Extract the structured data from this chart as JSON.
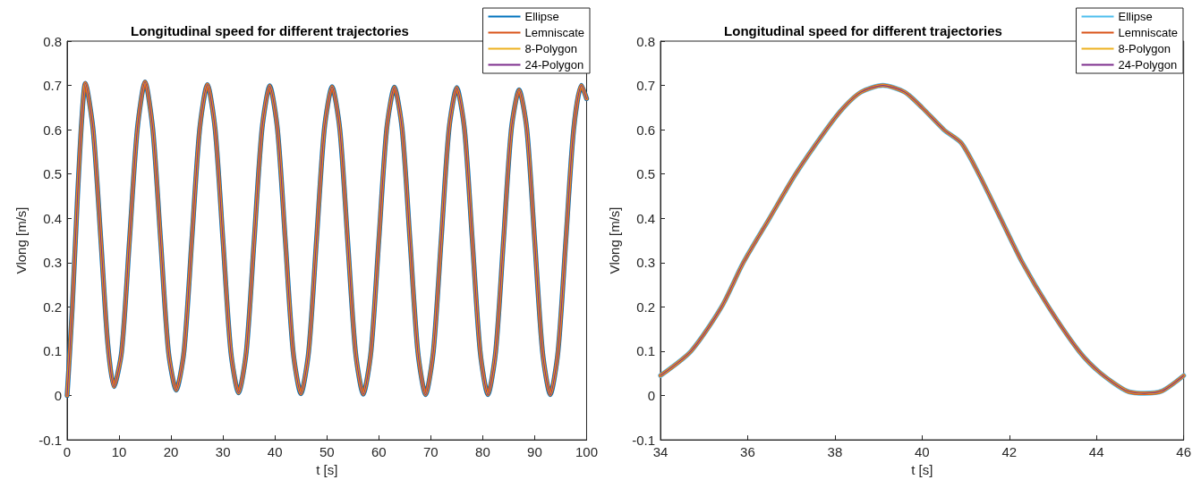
{
  "chart_data": [
    {
      "type": "line",
      "title": "Longitudinal speed for different trajectories",
      "xlabel": "t [s]",
      "ylabel": "Vlong [m/s]",
      "xlim": [
        0,
        100
      ],
      "xticks": [
        0,
        10,
        20,
        30,
        40,
        50,
        60,
        70,
        80,
        90,
        100
      ],
      "ylim": [
        -0.1,
        0.8
      ],
      "yticks": [
        -0.1,
        0,
        0.1,
        0.2,
        0.3,
        0.4,
        0.5,
        0.6,
        0.7,
        0.8
      ],
      "grid": false,
      "legend": "top right",
      "marker": "none",
      "line_style": "solid",
      "x": [
        0,
        1,
        2,
        2.8,
        3.5,
        5,
        6.5,
        7.8,
        9,
        10.5,
        12,
        13.5,
        15,
        16.5,
        18,
        19.5,
        21,
        22.5,
        24,
        25.5,
        27,
        28.5,
        30,
        31.5,
        33,
        34.5,
        36,
        37.5,
        39,
        40.5,
        42,
        43.5,
        45,
        46.5,
        48,
        49.5,
        51,
        52.5,
        54,
        55.5,
        57,
        58.5,
        60,
        61.5,
        63,
        64.5,
        66,
        67.5,
        69,
        70.5,
        72,
        73.5,
        75,
        76.5,
        78,
        79.5,
        81,
        82.5,
        84,
        85.5,
        87,
        88.5,
        90,
        91.5,
        93,
        94.5,
        96,
        97.5,
        99,
        100
      ],
      "series": [
        {
          "name": "Ellipse",
          "color": "#0072bd",
          "values": [
            0,
            0.2,
            0.45,
            0.62,
            0.705,
            0.6,
            0.35,
            0.12,
            0.02,
            0.1,
            0.35,
            0.6,
            0.708,
            0.6,
            0.35,
            0.1,
            0.012,
            0.1,
            0.35,
            0.6,
            0.702,
            0.6,
            0.35,
            0.1,
            0.006,
            0.1,
            0.35,
            0.6,
            0.699,
            0.6,
            0.35,
            0.1,
            0.004,
            0.1,
            0.35,
            0.6,
            0.697,
            0.6,
            0.35,
            0.1,
            0.003,
            0.1,
            0.35,
            0.6,
            0.696,
            0.6,
            0.35,
            0.1,
            0.002,
            0.1,
            0.35,
            0.6,
            0.695,
            0.6,
            0.35,
            0.1,
            0.002,
            0.1,
            0.35,
            0.6,
            0.69,
            0.6,
            0.35,
            0.1,
            0.002,
            0.1,
            0.35,
            0.6,
            0.7,
            0.67
          ]
        },
        {
          "name": "Lemniscate",
          "color": "#d95319",
          "values": [
            0,
            0.2,
            0.45,
            0.62,
            0.705,
            0.6,
            0.35,
            0.12,
            0.02,
            0.1,
            0.35,
            0.6,
            0.708,
            0.6,
            0.35,
            0.1,
            0.012,
            0.1,
            0.35,
            0.6,
            0.702,
            0.6,
            0.35,
            0.1,
            0.006,
            0.1,
            0.35,
            0.6,
            0.699,
            0.6,
            0.35,
            0.1,
            0.004,
            0.1,
            0.35,
            0.6,
            0.697,
            0.6,
            0.35,
            0.1,
            0.003,
            0.1,
            0.35,
            0.6,
            0.696,
            0.6,
            0.35,
            0.1,
            0.002,
            0.1,
            0.35,
            0.6,
            0.695,
            0.6,
            0.35,
            0.1,
            0.002,
            0.1,
            0.35,
            0.6,
            0.69,
            0.6,
            0.35,
            0.1,
            0.002,
            0.1,
            0.35,
            0.6,
            0.7,
            0.67
          ]
        },
        {
          "name": "8-Polygon",
          "color": "#edb120",
          "values": [
            0,
            0.2,
            0.45,
            0.62,
            0.705,
            0.6,
            0.35,
            0.12,
            0.02,
            0.1,
            0.35,
            0.6,
            0.708,
            0.6,
            0.35,
            0.1,
            0.012,
            0.1,
            0.35,
            0.6,
            0.702,
            0.6,
            0.35,
            0.1,
            0.006,
            0.1,
            0.35,
            0.6,
            0.699,
            0.6,
            0.35,
            0.1,
            0.004,
            0.1,
            0.35,
            0.6,
            0.697,
            0.6,
            0.35,
            0.1,
            0.003,
            0.1,
            0.35,
            0.6,
            0.696,
            0.6,
            0.35,
            0.1,
            0.002,
            0.1,
            0.35,
            0.6,
            0.695,
            0.6,
            0.35,
            0.1,
            0.002,
            0.1,
            0.35,
            0.6,
            0.69,
            0.6,
            0.35,
            0.1,
            0.002,
            0.1,
            0.35,
            0.6,
            0.7,
            0.67
          ]
        },
        {
          "name": "24-Polygon",
          "color": "#7e2f8e",
          "values": [
            0,
            0.2,
            0.45,
            0.62,
            0.705,
            0.6,
            0.35,
            0.12,
            0.02,
            0.1,
            0.35,
            0.6,
            0.708,
            0.6,
            0.35,
            0.1,
            0.012,
            0.1,
            0.35,
            0.6,
            0.702,
            0.6,
            0.35,
            0.1,
            0.006,
            0.1,
            0.35,
            0.6,
            0.699,
            0.6,
            0.35,
            0.1,
            0.004,
            0.1,
            0.35,
            0.6,
            0.697,
            0.6,
            0.35,
            0.1,
            0.003,
            0.1,
            0.35,
            0.6,
            0.696,
            0.6,
            0.35,
            0.1,
            0.002,
            0.1,
            0.35,
            0.6,
            0.695,
            0.6,
            0.35,
            0.1,
            0.002,
            0.1,
            0.35,
            0.6,
            0.69,
            0.6,
            0.35,
            0.1,
            0.002,
            0.1,
            0.35,
            0.6,
            0.7,
            0.67
          ]
        }
      ]
    },
    {
      "type": "line",
      "title": "Longitudinal speed for different trajectories",
      "xlabel": "t [s]",
      "ylabel": "Vlong [m/s]",
      "xlim": [
        34,
        46
      ],
      "xticks": [
        34,
        36,
        38,
        40,
        42,
        44,
        46
      ],
      "ylim": [
        -0.1,
        0.8
      ],
      "yticks": [
        -0.1,
        0,
        0.1,
        0.2,
        0.3,
        0.4,
        0.5,
        0.6,
        0.7,
        0.8
      ],
      "grid": false,
      "legend": "top right",
      "marker": "none",
      "line_style": "solid",
      "x": [
        34,
        34.7,
        35.4,
        35.9,
        36.5,
        37.1,
        37.8,
        38.2,
        38.6,
        39.1,
        39.6,
        40,
        40.5,
        40.9,
        41.3,
        41.8,
        42.3,
        42.9,
        43.6,
        44.1,
        44.7,
        45.1,
        45.5,
        46
      ],
      "series": [
        {
          "name": "Ellipse",
          "color": "#4dbeee",
          "values": [
            0.045,
            0.1,
            0.2,
            0.3,
            0.4,
            0.5,
            0.6,
            0.65,
            0.685,
            0.7,
            0.685,
            0.65,
            0.6,
            0.57,
            0.5,
            0.4,
            0.3,
            0.2,
            0.1,
            0.05,
            0.01,
            0.005,
            0.01,
            0.045
          ]
        },
        {
          "name": "Lemniscate",
          "color": "#d95319",
          "values": [
            0.045,
            0.1,
            0.2,
            0.3,
            0.4,
            0.5,
            0.6,
            0.65,
            0.685,
            0.7,
            0.685,
            0.65,
            0.6,
            0.57,
            0.5,
            0.4,
            0.3,
            0.2,
            0.1,
            0.05,
            0.01,
            0.005,
            0.01,
            0.045
          ]
        },
        {
          "name": "8-Polygon",
          "color": "#edb120",
          "values": [
            0.045,
            0.1,
            0.2,
            0.3,
            0.4,
            0.5,
            0.6,
            0.65,
            0.685,
            0.7,
            0.685,
            0.65,
            0.6,
            0.57,
            0.5,
            0.4,
            0.3,
            0.2,
            0.1,
            0.05,
            0.01,
            0.005,
            0.01,
            0.045
          ]
        },
        {
          "name": "24-Polygon",
          "color": "#7e2f8e",
          "values": [
            0.045,
            0.1,
            0.2,
            0.3,
            0.4,
            0.5,
            0.6,
            0.65,
            0.685,
            0.7,
            0.685,
            0.65,
            0.6,
            0.57,
            0.5,
            0.4,
            0.3,
            0.2,
            0.1,
            0.05,
            0.01,
            0.005,
            0.01,
            0.045
          ]
        }
      ]
    }
  ]
}
